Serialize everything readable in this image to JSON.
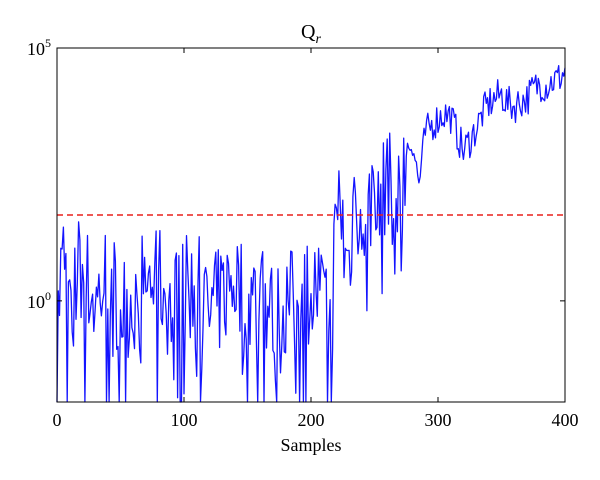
{
  "chart_data": {
    "type": "line",
    "title": "Q",
    "title_subscript": "r",
    "xlabel": "Samples",
    "ylabel": "",
    "xlim": [
      0,
      400
    ],
    "ylim": [
      0.01,
      100000
    ],
    "yscale": "log",
    "grid": false,
    "x_ticks": [
      0,
      100,
      200,
      300,
      400
    ],
    "x_tick_labels": [
      "0",
      "100",
      "200",
      "300",
      "400"
    ],
    "y_ticks": [
      1,
      100000
    ],
    "y_tick_labels": [
      {
        "base": "10",
        "exp": "0"
      },
      {
        "base": "10",
        "exp": "5"
      }
    ],
    "threshold": {
      "value": 50,
      "color": "#e8201c",
      "style": "dashed"
    },
    "series": [
      {
        "color": "#1414ff",
        "keypoints": [
          [
            0,
            0.2
          ],
          [
            3,
            3
          ],
          [
            6,
            8
          ],
          [
            9,
            0.5
          ],
          [
            10,
            20
          ],
          [
            12,
            0.03
          ],
          [
            14,
            2
          ],
          [
            18,
            5
          ],
          [
            25,
            2
          ],
          [
            30,
            0.8
          ],
          [
            40,
            4
          ],
          [
            45,
            2
          ],
          [
            50,
            0.7
          ],
          [
            60,
            1
          ],
          [
            70,
            2.5
          ],
          [
            80,
            3
          ],
          [
            90,
            0.6
          ],
          [
            100,
            1.5
          ],
          [
            110,
            2
          ],
          [
            120,
            0.5
          ],
          [
            130,
            1.2
          ],
          [
            140,
            3
          ],
          [
            150,
            0.8
          ],
          [
            160,
            1.5
          ],
          [
            170,
            0.5
          ],
          [
            180,
            1
          ],
          [
            190,
            0.8
          ],
          [
            200,
            2
          ],
          [
            210,
            1.5
          ],
          [
            215,
            0.2
          ],
          [
            220,
            50
          ],
          [
            223,
            150
          ],
          [
            226,
            10
          ],
          [
            230,
            5
          ],
          [
            235,
            300
          ],
          [
            240,
            80
          ],
          [
            245,
            30
          ],
          [
            250,
            400
          ],
          [
            255,
            50
          ],
          [
            260,
            600
          ],
          [
            265,
            30
          ],
          [
            270,
            100
          ],
          [
            275,
            1000
          ],
          [
            280,
            1500
          ],
          [
            285,
            200
          ],
          [
            290,
            2000
          ],
          [
            295,
            3000
          ],
          [
            300,
            4000
          ],
          [
            305,
            5000
          ],
          [
            310,
            4500
          ],
          [
            315,
            2000
          ],
          [
            320,
            900
          ],
          [
            325,
            1500
          ],
          [
            330,
            2500
          ],
          [
            335,
            5000
          ],
          [
            340,
            8000
          ],
          [
            345,
            10000
          ],
          [
            350,
            12000
          ],
          [
            355,
            8000
          ],
          [
            360,
            7000
          ],
          [
            365,
            9000
          ],
          [
            370,
            10000
          ],
          [
            375,
            15000
          ],
          [
            380,
            20000
          ],
          [
            385,
            18000
          ],
          [
            390,
            22000
          ],
          [
            395,
            25000
          ],
          [
            398,
            30000
          ],
          [
            400,
            35000
          ]
        ],
        "sample_count": 400,
        "noise_note": "noisy signal; values dip below the axis floor frequently for x < 270"
      }
    ]
  }
}
